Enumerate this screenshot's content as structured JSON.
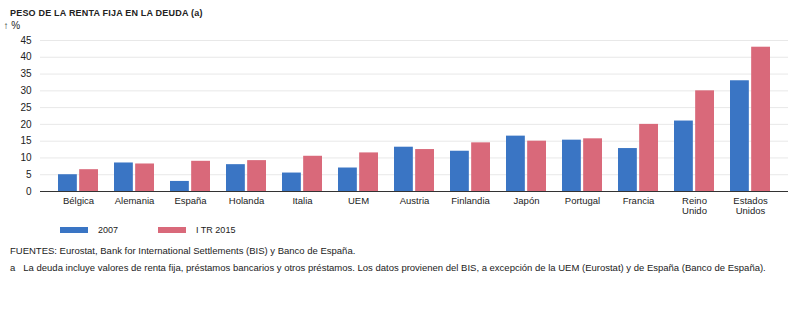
{
  "chart_data": {
    "type": "bar",
    "title": "PESO DE LA RENTA FIJA EN LA DEUDA (a)",
    "ylabel": "%",
    "categories": [
      "Bélgica",
      "Alemania",
      "España",
      "Holanda",
      "Italia",
      "UEM",
      "Austria",
      "Finlandia",
      "Japón",
      "Portugal",
      "Francia",
      "Reino Unido",
      "Estados Unidos"
    ],
    "series": [
      {
        "name": "2007",
        "color": "#3a75c4",
        "values": [
          5,
          8.5,
          3,
          8,
          5.5,
          7,
          13.2,
          12,
          16.5,
          15.3,
          12.8,
          21,
          33
        ]
      },
      {
        "name": "I TR 2015",
        "color": "#d9697a",
        "values": [
          6.5,
          8.2,
          9,
          9.2,
          10.5,
          11.5,
          12.5,
          14.5,
          15,
          15.7,
          20,
          30,
          43
        ]
      }
    ],
    "ylim": [
      0,
      45
    ],
    "yticks": [
      0,
      5,
      10,
      15,
      20,
      25,
      30,
      35,
      40,
      45
    ],
    "grid": true,
    "legend": "bottom-left",
    "source": "FUENTES: Eurostat, Bank for International Settlements (BIS) y Banco de España.",
    "notes": [
      {
        "marker": "a",
        "text": "La deuda incluye valores de renta fija, préstamos bancarios y otros préstamos. Los datos provienen del BIS, a excepción de la UEM (Eurostat) y de España (Banco de España)."
      }
    ]
  }
}
